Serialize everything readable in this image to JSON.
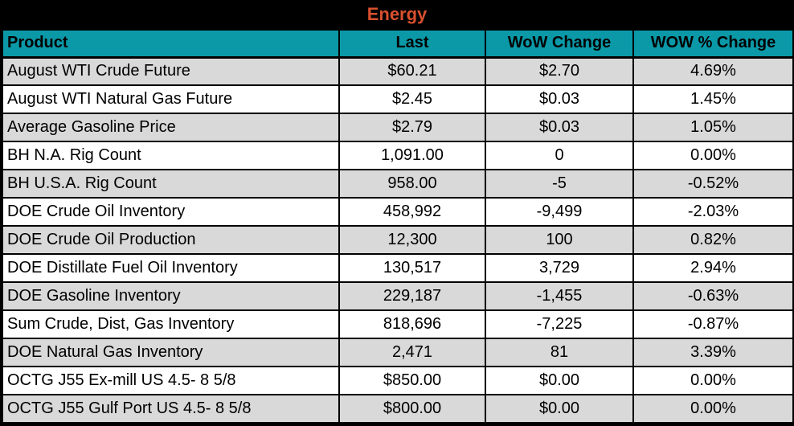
{
  "title": "Energy",
  "columns": [
    "Product",
    "Last",
    "WoW Change",
    "WOW % Change"
  ],
  "rows": [
    {
      "cells": [
        "August WTI Crude Future",
        "$60.21",
        "$2.70",
        "4.69%"
      ]
    },
    {
      "cells": [
        "August WTI Natural Gas Future",
        "$2.45",
        "$0.03",
        "1.45%"
      ]
    },
    {
      "cells": [
        "Average Gasoline Price",
        "$2.79",
        "$0.03",
        "1.05%"
      ]
    },
    {
      "cells": [
        "BH N.A. Rig Count",
        "1,091.00",
        "0",
        "0.00%"
      ]
    },
    {
      "cells": [
        "BH U.S.A. Rig Count",
        "958.00",
        "-5",
        "-0.52%"
      ]
    },
    {
      "cells": [
        "DOE Crude Oil Inventory",
        "458,992",
        "-9,499",
        "-2.03%"
      ]
    },
    {
      "cells": [
        "DOE Crude Oil Production",
        "12,300",
        "100",
        "0.82%"
      ]
    },
    {
      "cells": [
        "DOE Distillate Fuel Oil Inventory",
        "130,517",
        "3,729",
        "2.94%"
      ]
    },
    {
      "cells": [
        "DOE Gasoline Inventory",
        "229,187",
        "-1,455",
        "-0.63%"
      ]
    },
    {
      "cells": [
        "Sum Crude, Dist, Gas Inventory",
        "818,696",
        "-7,225",
        "-0.87%"
      ]
    },
    {
      "cells": [
        "DOE Natural Gas Inventory",
        "2,471",
        "81",
        "3.39%"
      ]
    },
    {
      "cells": [
        "OCTG J55 Ex-mill US 4.5- 8 5/8",
        "$850.00",
        "$0.00",
        "0.00%"
      ]
    },
    {
      "cells": [
        "OCTG J55 Gulf Port US 4.5- 8 5/8",
        "$800.00",
        "$0.00",
        "0.00%"
      ]
    }
  ],
  "colors": {
    "title_text": "#D8502E",
    "title_bg": "#000000",
    "header_bg": "#0B99A8",
    "header_text": "#000000",
    "row_bg_odd": "#D9D9D9",
    "row_bg_even": "#FFFFFF",
    "border": "#000000"
  },
  "chart_data": {
    "type": "table",
    "title": "Energy",
    "columns": [
      "Product",
      "Last",
      "WoW Change",
      "WOW % Change"
    ],
    "rows": [
      [
        "August WTI Crude Future",
        "$60.21",
        "$2.70",
        "4.69%"
      ],
      [
        "August WTI Natural Gas Future",
        "$2.45",
        "$0.03",
        "1.45%"
      ],
      [
        "Average Gasoline Price",
        "$2.79",
        "$0.03",
        "1.05%"
      ],
      [
        "BH N.A. Rig Count",
        "1,091.00",
        "0",
        "0.00%"
      ],
      [
        "BH U.S.A. Rig Count",
        "958.00",
        "-5",
        "-0.52%"
      ],
      [
        "DOE Crude Oil Inventory",
        "458,992",
        "-9,499",
        "-2.03%"
      ],
      [
        "DOE Crude Oil Production",
        "12,300",
        "100",
        "0.82%"
      ],
      [
        "DOE Distillate Fuel Oil Inventory",
        "130,517",
        "3,729",
        "2.94%"
      ],
      [
        "DOE Gasoline Inventory",
        "229,187",
        "-1,455",
        "-0.63%"
      ],
      [
        "Sum Crude, Dist, Gas Inventory",
        "818,696",
        "-7,225",
        "-0.87%"
      ],
      [
        "DOE Natural Gas Inventory",
        "2,471",
        "81",
        "3.39%"
      ],
      [
        "OCTG J55 Ex-mill US 4.5- 8 5/8",
        "$850.00",
        "$0.00",
        "0.00%"
      ],
      [
        "OCTG J55 Gulf Port US 4.5- 8 5/8",
        "$800.00",
        "$0.00",
        "0.00%"
      ]
    ]
  }
}
